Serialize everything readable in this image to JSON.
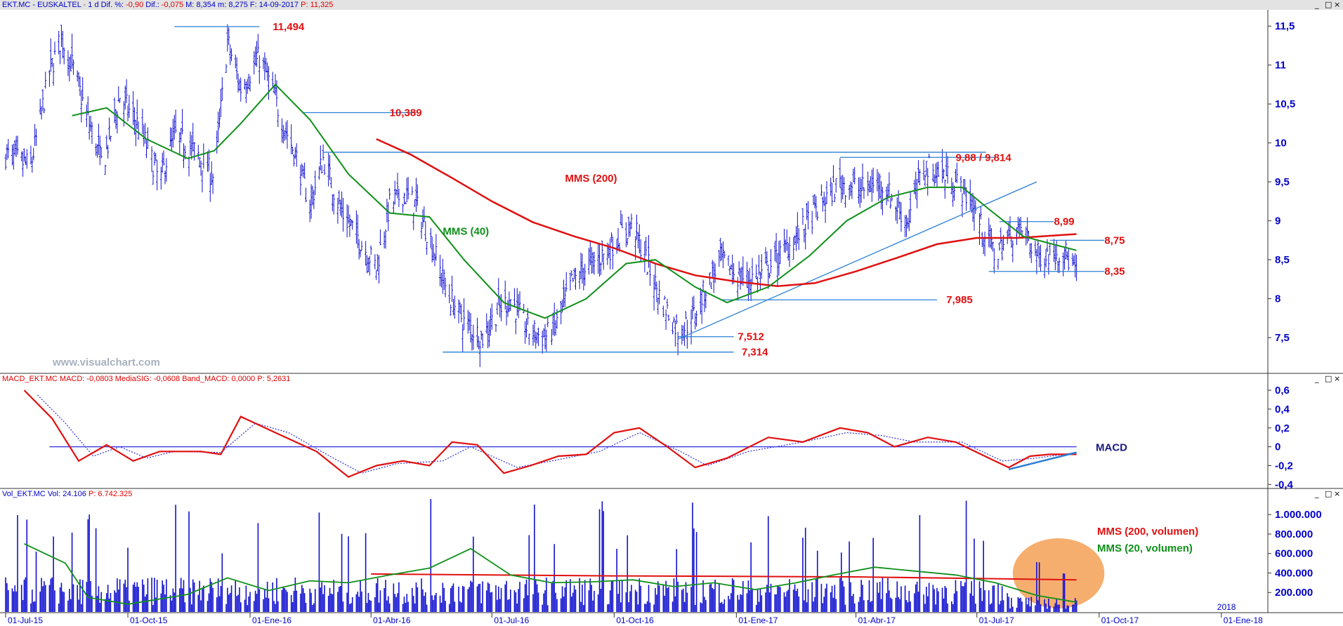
{
  "main_header": {
    "symbol": "EKT.MC - EUSKALTEL",
    "period": "1 d",
    "dif_pct_label": "Dif. %:",
    "dif_pct": "-0,90",
    "dif_label": "Dif.:",
    "dif": "-0,075",
    "max_label": "M:",
    "max": "8,354",
    "min_label": "m:",
    "min": "8,275",
    "date_label": "F:",
    "date": "14-09-2017",
    "price_label": "P:",
    "price": "11,325"
  },
  "macd_header": {
    "name": "MACD_EKT.MC",
    "macd_label": "MACD:",
    "macd": "-0,0803",
    "signal_label": "MediaSIG:",
    "signal": "-0,0608",
    "band_label": "Band_MACD:",
    "band": "0,0000",
    "p_label": "P:",
    "p": "5,2631"
  },
  "vol_header": {
    "name": "Vol_EKT.MC",
    "vol_label": "Vol:",
    "vol": "24.106",
    "p_label": "P:",
    "p": "6.742.325"
  },
  "window_controls": [
    "_",
    "□",
    "×"
  ],
  "watermark": "www.visualchart.com",
  "colors": {
    "price_bars": "#1010d0",
    "axis_text": "#0000c8",
    "mms200": "#e01010",
    "mms40": "#10901a",
    "annotation": "#e01010",
    "levels": "#2a7fd4",
    "trendline": "#2a7fd4",
    "macd_line": "#e01010",
    "signal_line": "#3030e0",
    "volume_bars": "#1010d0",
    "highlight": "#f5a055"
  },
  "chart_data": [
    {
      "panel": "price",
      "type": "ohlc-bar",
      "y_axis_position": "right",
      "ylim": [
        7.05,
        11.7
      ],
      "y_ticks": [
        "11,5",
        "11",
        "10,5",
        "10",
        "9,5",
        "9",
        "8,5",
        "8",
        "7,5"
      ],
      "x_ticks": [
        "01-Jul-15",
        "01-Oct-15",
        "01-Ene-16",
        "01-Abr-16",
        "01-Jul-16",
        "01-Oct-16",
        "01-Ene-17",
        "01-Abr-17",
        "01-Jul-17",
        "01-Oct-17",
        "01-Ene-18",
        "2018"
      ],
      "x_range": [
        "2015-07-01",
        "2018-02-05"
      ],
      "last_bar_date": "2017-09-14",
      "close_path": [
        [
          "2015-07-01",
          9.85
        ],
        [
          "2015-07-20",
          9.7
        ],
        [
          "2015-08-03",
          10.9
        ],
        [
          "2015-08-12",
          11.35
        ],
        [
          "2015-08-20",
          11.0
        ],
        [
          "2015-09-01",
          10.3
        ],
        [
          "2015-09-12",
          9.7
        ],
        [
          "2015-09-25",
          10.6
        ],
        [
          "2015-10-10",
          10.2
        ],
        [
          "2015-10-25",
          9.5
        ],
        [
          "2015-11-05",
          10.1
        ],
        [
          "2015-11-20",
          9.9
        ],
        [
          "2015-12-05",
          9.55
        ],
        [
          "2015-12-15",
          11.3
        ],
        [
          "2015-12-25",
          10.7
        ],
        [
          "2016-01-08",
          11.1
        ],
        [
          "2016-01-15",
          10.8
        ],
        [
          "2016-01-25",
          10.3
        ],
        [
          "2016-02-05",
          9.8
        ],
        [
          "2016-02-15",
          9.2
        ],
        [
          "2016-02-25",
          9.8
        ],
        [
          "2016-03-10",
          9.1
        ],
        [
          "2016-03-22",
          8.8
        ],
        [
          "2016-04-05",
          8.4
        ],
        [
          "2016-04-15",
          9.2
        ],
        [
          "2016-04-25",
          9.35
        ],
        [
          "2016-05-05",
          9.2
        ],
        [
          "2016-05-15",
          8.8
        ],
        [
          "2016-05-28",
          8.1
        ],
        [
          "2016-06-10",
          7.7
        ],
        [
          "2016-06-24",
          7.5
        ],
        [
          "2016-07-05",
          7.85
        ],
        [
          "2016-07-15",
          8.0
        ],
        [
          "2016-07-28",
          7.6
        ],
        [
          "2016-08-10",
          7.5
        ],
        [
          "2016-08-20",
          7.7
        ],
        [
          "2016-08-30",
          8.2
        ],
        [
          "2016-09-10",
          8.4
        ],
        [
          "2016-09-25",
          8.6
        ],
        [
          "2016-10-05",
          8.8
        ],
        [
          "2016-10-15",
          8.95
        ],
        [
          "2016-10-25",
          8.5
        ],
        [
          "2016-11-05",
          8.0
        ],
        [
          "2016-11-18",
          7.6
        ],
        [
          "2016-11-28",
          7.7
        ],
        [
          "2016-12-08",
          8.1
        ],
        [
          "2016-12-20",
          8.5
        ],
        [
          "2017-01-05",
          8.25
        ],
        [
          "2017-01-20",
          8.3
        ],
        [
          "2017-02-05",
          8.6
        ],
        [
          "2017-02-20",
          8.9
        ],
        [
          "2017-03-05",
          9.2
        ],
        [
          "2017-03-20",
          9.5
        ],
        [
          "2017-04-05",
          9.4
        ],
        [
          "2017-04-20",
          9.5
        ],
        [
          "2017-05-01",
          9.2
        ],
        [
          "2017-05-10",
          9.0
        ],
        [
          "2017-05-22",
          9.7
        ],
        [
          "2017-06-05",
          9.6
        ],
        [
          "2017-06-15",
          9.5
        ],
        [
          "2017-06-25",
          9.3
        ],
        [
          "2017-07-05",
          8.9
        ],
        [
          "2017-07-15",
          8.55
        ],
        [
          "2017-07-25",
          8.8
        ],
        [
          "2017-08-05",
          8.9
        ],
        [
          "2017-08-15",
          8.55
        ],
        [
          "2017-08-25",
          8.6
        ],
        [
          "2017-09-05",
          8.6
        ],
        [
          "2017-09-14",
          8.3
        ]
      ],
      "mms200": [
        [
          "2016-04-05",
          10.05
        ],
        [
          "2016-05-01",
          9.85
        ],
        [
          "2016-06-01",
          9.55
        ],
        [
          "2016-07-01",
          9.25
        ],
        [
          "2016-08-01",
          8.98
        ],
        [
          "2016-09-01",
          8.8
        ],
        [
          "2016-10-01",
          8.65
        ],
        [
          "2016-11-01",
          8.45
        ],
        [
          "2016-12-01",
          8.3
        ],
        [
          "2017-01-01",
          8.22
        ],
        [
          "2017-02-01",
          8.16
        ],
        [
          "2017-03-01",
          8.2
        ],
        [
          "2017-04-01",
          8.35
        ],
        [
          "2017-05-01",
          8.52
        ],
        [
          "2017-06-01",
          8.7
        ],
        [
          "2017-07-01",
          8.78
        ],
        [
          "2017-08-01",
          8.78
        ],
        [
          "2017-09-14",
          8.83
        ]
      ],
      "mms40": [
        [
          "2015-08-20",
          10.35
        ],
        [
          "2015-09-15",
          10.45
        ],
        [
          "2015-10-15",
          10.05
        ],
        [
          "2015-11-15",
          9.8
        ],
        [
          "2015-12-05",
          9.9
        ],
        [
          "2015-12-25",
          10.25
        ],
        [
          "2016-01-20",
          10.75
        ],
        [
          "2016-02-15",
          10.3
        ],
        [
          "2016-03-15",
          9.6
        ],
        [
          "2016-04-15",
          9.1
        ],
        [
          "2016-05-15",
          9.05
        ],
        [
          "2016-06-10",
          8.5
        ],
        [
          "2016-07-10",
          7.95
        ],
        [
          "2016-08-10",
          7.75
        ],
        [
          "2016-09-10",
          8.0
        ],
        [
          "2016-10-10",
          8.45
        ],
        [
          "2016-11-01",
          8.5
        ],
        [
          "2016-12-01",
          8.15
        ],
        [
          "2016-12-25",
          7.95
        ],
        [
          "2017-01-25",
          8.15
        ],
        [
          "2017-02-25",
          8.55
        ],
        [
          "2017-03-25",
          9.0
        ],
        [
          "2017-04-25",
          9.3
        ],
        [
          "2017-05-25",
          9.43
        ],
        [
          "2017-06-20",
          9.43
        ],
        [
          "2017-07-10",
          9.15
        ],
        [
          "2017-08-05",
          8.8
        ],
        [
          "2017-09-14",
          8.62
        ]
      ],
      "levels": [
        {
          "label": "11,494",
          "value": 11.494,
          "start": "2015-11-05",
          "end": "2016-01-08",
          "label_date": "2016-01-18"
        },
        {
          "label": "10,389",
          "value": 10.389,
          "start": "2016-02-10",
          "end": "2016-05-05",
          "label_date": "2016-04-15"
        },
        {
          "label": "",
          "value": 9.88,
          "start": "2016-02-25",
          "end": "2017-07-08",
          "label_date": ""
        },
        {
          "label": "9,88 / 9,814",
          "value": 9.814,
          "start": "2017-03-20",
          "end": "2017-07-15",
          "label_date": "2017-06-15"
        },
        {
          "label": "8,99",
          "value": 8.99,
          "start": "2017-07-18",
          "end": "2017-08-28",
          "label_date": "2017-08-28"
        },
        {
          "label": "8,75",
          "value": 8.75,
          "start": "2017-08-25",
          "end": "2017-10-05",
          "label_date": "2017-10-05"
        },
        {
          "label": "8,35",
          "value": 8.35,
          "start": "2017-07-10",
          "end": "2017-10-05",
          "label_date": "2017-10-05"
        },
        {
          "label": "7,985",
          "value": 7.985,
          "start": "2016-12-20",
          "end": "2017-06-01",
          "label_date": "2017-06-08"
        },
        {
          "label": "7,512",
          "value": 7.512,
          "start": "2016-11-18",
          "end": "2016-12-30",
          "label_date": "2017-01-02"
        },
        {
          "label": "7,314",
          "value": 7.314,
          "start": "2016-05-25",
          "end": "2016-12-30",
          "label_date": "2017-01-05"
        }
      ],
      "trendline": [
        [
          "2016-11-18",
          7.48
        ],
        [
          "2017-08-15",
          9.5
        ]
      ],
      "annotations": [
        {
          "text": "MMS (200)",
          "date": "2016-08-25",
          "value": 9.5
        },
        {
          "text": "MMS (40)",
          "date": "2016-05-25",
          "value": 8.82
        }
      ]
    },
    {
      "panel": "macd",
      "type": "line",
      "ylim": [
        -0.42,
        0.66
      ],
      "y_ticks": [
        "0,6",
        "0,4",
        "0,2",
        "0",
        "-0,2",
        "-0,4"
      ],
      "title": "MACD",
      "zero_line": 0,
      "macd": [
        [
          "2015-07-15",
          0.6
        ],
        [
          "2015-08-05",
          0.3
        ],
        [
          "2015-08-25",
          -0.15
        ],
        [
          "2015-09-15",
          0.02
        ],
        [
          "2015-10-05",
          -0.15
        ],
        [
          "2015-10-25",
          -0.05
        ],
        [
          "2015-11-25",
          -0.05
        ],
        [
          "2015-12-10",
          -0.08
        ],
        [
          "2015-12-25",
          0.32
        ],
        [
          "2016-01-20",
          0.15
        ],
        [
          "2016-02-20",
          -0.05
        ],
        [
          "2016-03-15",
          -0.32
        ],
        [
          "2016-04-05",
          -0.2
        ],
        [
          "2016-04-25",
          -0.15
        ],
        [
          "2016-05-15",
          -0.2
        ],
        [
          "2016-06-01",
          0.05
        ],
        [
          "2016-06-20",
          0.02
        ],
        [
          "2016-07-10",
          -0.28
        ],
        [
          "2016-07-30",
          -0.2
        ],
        [
          "2016-08-20",
          -0.1
        ],
        [
          "2016-09-10",
          -0.08
        ],
        [
          "2016-10-01",
          0.15
        ],
        [
          "2016-10-20",
          0.2
        ],
        [
          "2016-11-10",
          0.0
        ],
        [
          "2016-12-01",
          -0.22
        ],
        [
          "2016-12-25",
          -0.12
        ],
        [
          "2017-01-25",
          0.1
        ],
        [
          "2017-02-20",
          0.05
        ],
        [
          "2017-03-20",
          0.2
        ],
        [
          "2017-04-10",
          0.15
        ],
        [
          "2017-04-30",
          0.0
        ],
        [
          "2017-05-25",
          0.1
        ],
        [
          "2017-06-15",
          0.05
        ],
        [
          "2017-07-10",
          -0.12
        ],
        [
          "2017-07-25",
          -0.22
        ],
        [
          "2017-08-10",
          -0.1
        ],
        [
          "2017-08-25",
          -0.08
        ],
        [
          "2017-09-14",
          -0.08
        ]
      ],
      "signal": [
        [
          "2015-07-25",
          0.55
        ],
        [
          "2015-08-15",
          0.25
        ],
        [
          "2015-09-05",
          -0.1
        ],
        [
          "2015-09-25",
          0.0
        ],
        [
          "2015-10-15",
          -0.12
        ],
        [
          "2015-11-05",
          -0.05
        ],
        [
          "2015-12-10",
          -0.06
        ],
        [
          "2016-01-05",
          0.25
        ],
        [
          "2016-01-30",
          0.15
        ],
        [
          "2016-03-01",
          -0.1
        ],
        [
          "2016-03-25",
          -0.28
        ],
        [
          "2016-04-20",
          -0.18
        ],
        [
          "2016-05-25",
          -0.15
        ],
        [
          "2016-06-15",
          0.0
        ],
        [
          "2016-07-20",
          -0.22
        ],
        [
          "2016-08-15",
          -0.15
        ],
        [
          "2016-09-20",
          -0.05
        ],
        [
          "2016-10-20",
          0.15
        ],
        [
          "2016-11-20",
          -0.05
        ],
        [
          "2016-12-10",
          -0.2
        ],
        [
          "2017-01-10",
          -0.05
        ],
        [
          "2017-02-20",
          0.05
        ],
        [
          "2017-03-25",
          0.15
        ],
        [
          "2017-04-20",
          0.12
        ],
        [
          "2017-05-15",
          0.05
        ],
        [
          "2017-06-20",
          0.05
        ],
        [
          "2017-07-20",
          -0.15
        ],
        [
          "2017-08-15",
          -0.12
        ],
        [
          "2017-09-14",
          -0.06
        ]
      ],
      "divergence_line": [
        [
          "2017-07-25",
          -0.24
        ],
        [
          "2017-09-14",
          -0.06
        ]
      ]
    },
    {
      "panel": "volume",
      "type": "bar",
      "ylim": [
        0,
        1160000
      ],
      "y_ticks": [
        "1.000.000",
        "800.000",
        "600.000",
        "400.000",
        "200.000"
      ],
      "typical_daily_volume": 280000,
      "mms200_volume": [
        [
          "2016-04-01",
          390000
        ],
        [
          "2016-10-01",
          370000
        ],
        [
          "2017-04-01",
          360000
        ],
        [
          "2017-09-14",
          330000
        ]
      ],
      "mms20_volume": [
        [
          "2015-07-15",
          700000
        ],
        [
          "2015-08-15",
          500000
        ],
        [
          "2015-09-01",
          150000
        ],
        [
          "2015-10-01",
          80000
        ],
        [
          "2015-11-15",
          180000
        ],
        [
          "2015-12-15",
          350000
        ],
        [
          "2016-01-15",
          220000
        ],
        [
          "2016-02-15",
          320000
        ],
        [
          "2016-03-15",
          300000
        ],
        [
          "2016-04-15",
          380000
        ],
        [
          "2016-05-15",
          450000
        ],
        [
          "2016-06-15",
          650000
        ],
        [
          "2016-07-15",
          380000
        ],
        [
          "2016-08-15",
          300000
        ],
        [
          "2016-09-15",
          310000
        ],
        [
          "2016-10-15",
          330000
        ],
        [
          "2016-11-15",
          260000
        ],
        [
          "2016-12-15",
          300000
        ],
        [
          "2017-01-15",
          230000
        ],
        [
          "2017-02-15",
          300000
        ],
        [
          "2017-03-15",
          380000
        ],
        [
          "2017-04-15",
          460000
        ],
        [
          "2017-05-15",
          420000
        ],
        [
          "2017-06-15",
          380000
        ],
        [
          "2017-07-15",
          300000
        ],
        [
          "2017-08-15",
          170000
        ],
        [
          "2017-09-14",
          100000
        ]
      ],
      "highlight": {
        "start": "2017-07-28",
        "end": "2017-10-05"
      },
      "legend": [
        "MMS (200, volumen)",
        "MMS (20, volumen)"
      ]
    }
  ]
}
